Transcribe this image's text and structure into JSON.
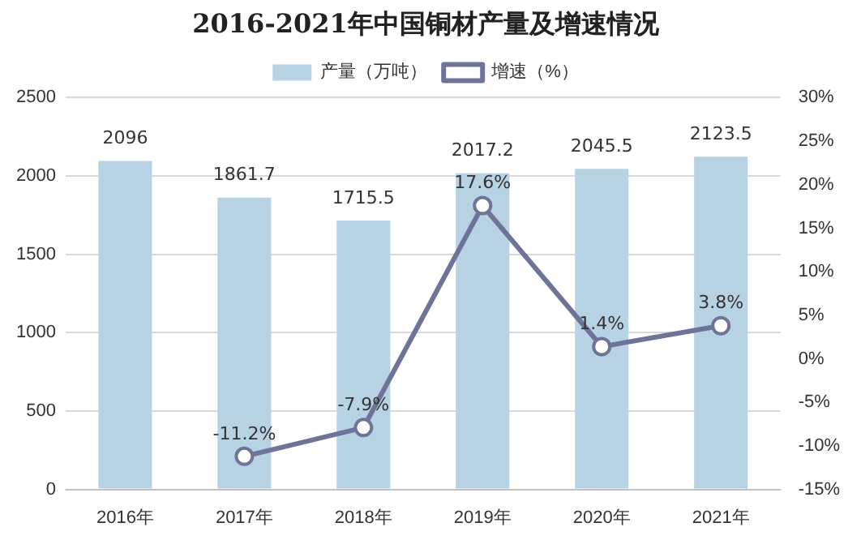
{
  "chart_data": {
    "type": "bar",
    "title": "2016-2021年中国铜材产量及增速情况",
    "categories": [
      "2016年",
      "2017年",
      "2018年",
      "2019年",
      "2020年",
      "2021年"
    ],
    "series": [
      {
        "name": "产量（万吨）",
        "color": "#b7d2e3",
        "values": [
          2096,
          1861.7,
          1715.5,
          2017.2,
          2045.5,
          2123.5
        ],
        "value_labels": [
          "2096",
          "1861.7",
          "1715.5",
          "2017.2",
          "2045.5",
          "2123.5"
        ]
      },
      {
        "name": "增速（%）",
        "type": "line",
        "axis": "y2",
        "color": "#6e7498",
        "values": [
          null,
          -11.2,
          -7.9,
          17.6,
          1.4,
          3.8
        ],
        "value_labels": [
          null,
          "-11.2%",
          "-7.9%",
          "17.6%",
          "1.4%",
          "3.8%"
        ],
        "marker": "circle",
        "line_style": "solid"
      }
    ],
    "ylim": [
      0,
      2500
    ],
    "yticks": [
      0,
      500,
      1000,
      1500,
      2000,
      2500
    ],
    "y2lim": [
      -15,
      30
    ],
    "y2ticks": [
      {
        "value": -15,
        "label": "-15%"
      },
      {
        "value": -10,
        "label": "-10%"
      },
      {
        "value": -5,
        "label": "-5%"
      },
      {
        "value": 0,
        "label": "0%"
      },
      {
        "value": 5,
        "label": "5%"
      },
      {
        "value": 10,
        "label": "10%"
      },
      {
        "value": 15,
        "label": "15%"
      },
      {
        "value": 20,
        "label": "20%"
      },
      {
        "value": 25,
        "label": "25%"
      },
      {
        "value": 30,
        "label": "30%"
      }
    ],
    "grid": "y",
    "legend": "top"
  }
}
